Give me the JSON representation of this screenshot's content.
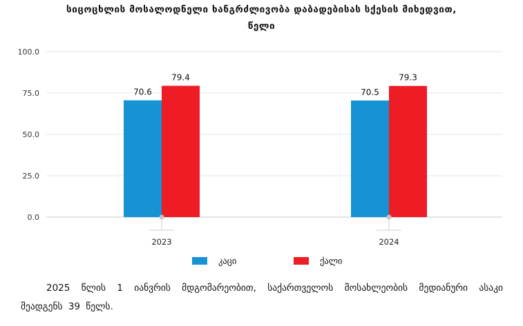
{
  "chart_data": {
    "type": "bar",
    "title_line1": "სიცოცხლის მოსალოდნელი ხანგრძლივობა დაბადებისას სქესის მიხედვით,",
    "title_line2": "წელი",
    "categories": [
      "2023",
      "2024"
    ],
    "series": [
      {
        "name": "კაცი",
        "color": "#1593d3",
        "values": [
          70.6,
          70.5
        ]
      },
      {
        "name": "ქალი",
        "color": "#ee1c25",
        "values": [
          79.4,
          79.3
        ]
      }
    ],
    "data_labels": [
      [
        "70.6",
        "70.5"
      ],
      [
        "79.4",
        "79.3"
      ]
    ],
    "ylim": [
      0,
      100
    ],
    "yticks": [
      "0.0",
      "25.0",
      "50.0",
      "75.0",
      "100.0"
    ],
    "xlabel": "",
    "ylabel": "",
    "legend_position": "bottom",
    "grid": true
  },
  "note": "2025 წლის 1 იანვრის მდგომარეობით, საქართველოს მოსახლეობის მედიანური ასაკი შეადგენს 39 წელს."
}
